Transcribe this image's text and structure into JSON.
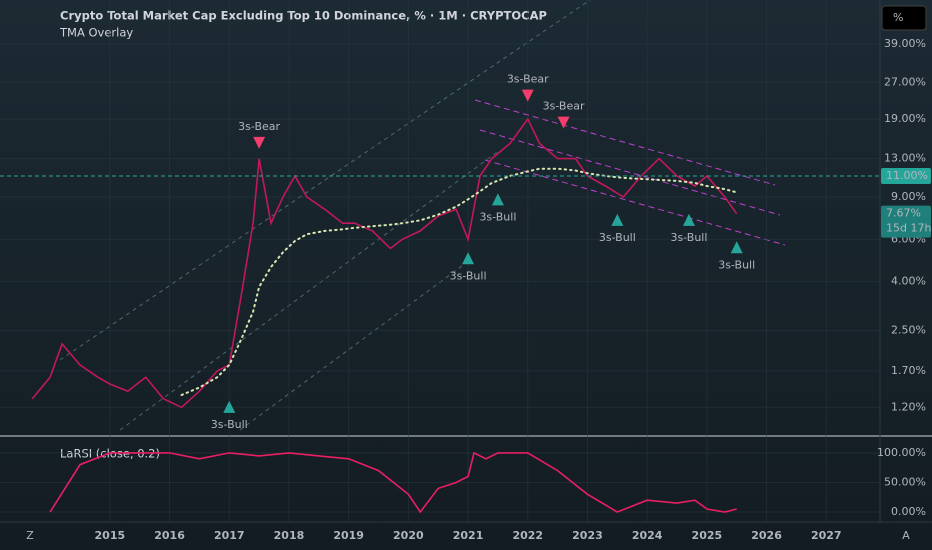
{
  "ui": {
    "scale_button": "%",
    "corner_left": "Z",
    "corner_right": "A",
    "countdown": "15d 17h",
    "price_tags": [
      {
        "value": 11,
        "label": "11.00%",
        "color": "#26a69a"
      },
      {
        "value": 7.67,
        "label": "7.67%",
        "color": "#1f7f7a"
      }
    ]
  },
  "chart_data": [
    {
      "type": "line",
      "title": "Crypto Total Market Cap Excluding Top 10 Dominance, % · 1M · CRYPTOCAP",
      "subtitle": "TMA Overlay",
      "log": true,
      "x": [
        2013.7,
        2014.0,
        2014.2,
        2014.5,
        2014.8,
        2015.0,
        2015.3,
        2015.6,
        2015.9,
        2016.2,
        2016.5,
        2016.8,
        2017.0,
        2017.2,
        2017.4,
        2017.5,
        2017.7,
        2017.9,
        2018.1,
        2018.3,
        2018.6,
        2018.9,
        2019.1,
        2019.4,
        2019.7,
        2019.9,
        2020.2,
        2020.5,
        2020.8,
        2021.0,
        2021.2,
        2021.4,
        2021.7,
        2022.0,
        2022.2,
        2022.5,
        2022.8,
        2023.0,
        2023.3,
        2023.6,
        2023.9,
        2024.2,
        2024.5,
        2024.8,
        2025.0,
        2025.3,
        2025.5
      ],
      "series": [
        {
          "color": "#c2185b",
          "values": [
            1.3,
            1.6,
            2.2,
            1.8,
            1.6,
            1.5,
            1.4,
            1.6,
            1.3,
            1.2,
            1.4,
            1.7,
            1.8,
            3.5,
            7,
            13,
            7,
            9,
            11,
            9,
            8,
            7,
            7,
            6.5,
            5.5,
            6,
            6.5,
            7.5,
            8,
            6,
            11,
            13,
            15,
            19,
            15,
            13,
            13,
            11,
            10,
            9,
            11,
            13,
            11,
            10,
            11,
            9,
            7.67
          ]
        },
        {
          "color": "#d8e6b0",
          "dotted": true,
          "values": [
            null,
            null,
            null,
            null,
            null,
            null,
            null,
            null,
            null,
            1.35,
            1.45,
            1.6,
            1.8,
            2.3,
            3.0,
            3.8,
            4.6,
            5.3,
            5.9,
            6.3,
            6.5,
            6.6,
            6.7,
            6.8,
            6.9,
            7.0,
            7.2,
            7.6,
            8.2,
            8.8,
            9.5,
            10.3,
            11.0,
            11.5,
            11.8,
            11.8,
            11.6,
            11.3,
            11.0,
            10.8,
            10.7,
            10.6,
            10.5,
            10.3,
            10.0,
            9.7,
            9.4
          ]
        }
      ],
      "annotations": [
        {
          "text": "3s-Bear",
          "x": 2017.5,
          "y": 14,
          "color": "#f23d6d",
          "kind": "bear"
        },
        {
          "text": "3s-Bear",
          "x": 2022.0,
          "y": 22,
          "color": "#f23d6d",
          "kind": "bear"
        },
        {
          "text": "3s-Bear",
          "x": 2022.6,
          "y": 17,
          "color": "#f23d6d",
          "kind": "bear"
        },
        {
          "text": "3s-Bull",
          "x": 2017.0,
          "y": 1.3,
          "color": "#26a69a",
          "kind": "bull"
        },
        {
          "text": "3s-Bull",
          "x": 2021.0,
          "y": 5.4,
          "color": "#26a69a",
          "kind": "bull"
        },
        {
          "text": "3s-Bull",
          "x": 2021.5,
          "y": 9.5,
          "color": "#26a69a",
          "kind": "bull"
        },
        {
          "text": "3s-Bull",
          "x": 2023.5,
          "y": 7.8,
          "color": "#26a69a",
          "kind": "bull"
        },
        {
          "text": "3s-Bull",
          "x": 2024.7,
          "y": 7.8,
          "color": "#26a69a",
          "kind": "bull"
        },
        {
          "text": "3s-Bull",
          "x": 2025.5,
          "y": 6.0,
          "color": "#26a69a",
          "kind": "bull"
        }
      ],
      "xlim": [
        2013.16,
        2027.9
      ],
      "xticks": [
        2015,
        2016,
        2017,
        2018,
        2019,
        2020,
        2021,
        2022,
        2023,
        2024,
        2025,
        2026,
        2027
      ],
      "ylim": [
        0.92,
        59.4
      ],
      "yticks": [
        {
          "value": 1.2,
          "label": "1.20%"
        },
        {
          "value": 1.7,
          "label": "1.70%"
        },
        {
          "value": 2.5,
          "label": "2.50%"
        },
        {
          "value": 4,
          "label": "4.00%"
        },
        {
          "value": 6,
          "label": "6.00%"
        },
        {
          "value": 9,
          "label": "9.00%"
        },
        {
          "value": 13,
          "label": "13.00%"
        },
        {
          "value": 19,
          "label": "19.00%"
        },
        {
          "value": 27,
          "label": "27.00%"
        },
        {
          "value": 39,
          "label": "39.00%"
        }
      ]
    },
    {
      "type": "line",
      "title": "LaRSI (close, 0.2)",
      "log": false,
      "x": [
        2014.0,
        2014.5,
        2015,
        2015.5,
        2016,
        2016.5,
        2017,
        2017.5,
        2018,
        2018.5,
        2019,
        2019.5,
        2020,
        2020.2,
        2020.5,
        2020.8,
        2021,
        2021.1,
        2021.3,
        2021.5,
        2022,
        2022.5,
        2023,
        2023.5,
        2024,
        2024.5,
        2024.8,
        2025,
        2025.3,
        2025.5
      ],
      "series": [
        {
          "color": "#e91e63",
          "values": [
            0,
            80,
            100,
            100,
            100,
            90,
            100,
            95,
            100,
            95,
            90,
            70,
            30,
            0,
            40,
            50,
            60,
            100,
            90,
            100,
            100,
            70,
            30,
            0,
            20,
            15,
            20,
            5,
            0,
            5
          ]
        }
      ],
      "xlim": [
        2013.16,
        2027.9
      ],
      "ylim": [
        -17,
        127
      ],
      "yticks": [
        {
          "value": 0,
          "label": "0.00%"
        },
        {
          "value": 50,
          "label": "50.00%"
        },
        {
          "value": 100,
          "label": "100.00%"
        }
      ]
    }
  ]
}
